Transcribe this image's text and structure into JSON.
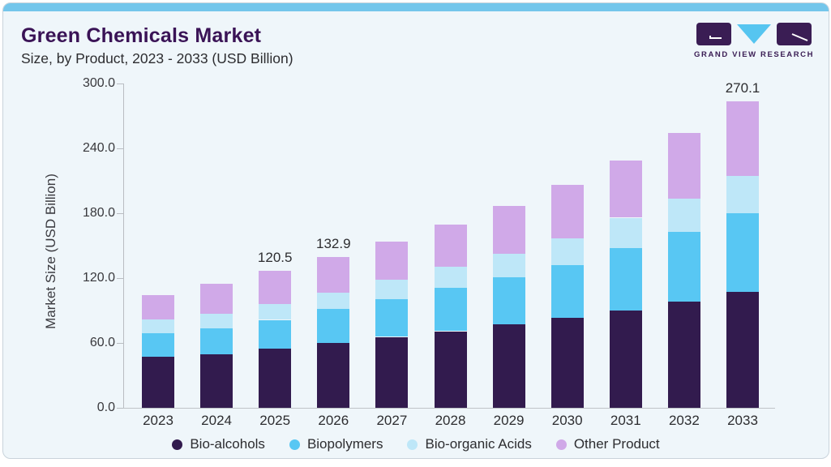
{
  "header": {
    "title": "Green Chemicals Market",
    "subtitle": "Size, by Product, 2023 - 2033 (USD Billion)"
  },
  "logo": {
    "name": "grand-view-research",
    "text": "GRAND VIEW RESEARCH",
    "dark_color": "#3a1d54",
    "blue_color": "#56c5f0"
  },
  "chart_data": {
    "type": "bar",
    "stacked": true,
    "title": "Green Chemicals Market Size, by Product, 2023 - 2033 (USD Billion)",
    "xlabel": "",
    "ylabel": "Market Size (USD Billion)",
    "ylim": [
      0,
      300
    ],
    "ytick_labels": [
      "300.0",
      "240.0",
      "180.0",
      "120.0",
      "60.0",
      "0.0"
    ],
    "grid": false,
    "legend_position": "bottom",
    "categories": [
      "2023",
      "2024",
      "2025",
      "2026",
      "2027",
      "2028",
      "2029",
      "2030",
      "2031",
      "2032",
      "2033"
    ],
    "series": [
      {
        "name": "Bio-alcohols",
        "color": "#321b4e",
        "values": [
          45.0,
          47.5,
          52.0,
          57.0,
          62.5,
          67.5,
          73.5,
          79.5,
          86.0,
          93.5,
          102.0
        ]
      },
      {
        "name": "Biopolymers",
        "color": "#58c7f3",
        "values": [
          20.5,
          22.5,
          25.5,
          30.0,
          33.0,
          38.0,
          41.5,
          46.5,
          54.5,
          61.5,
          69.5
        ]
      },
      {
        "name": "Bio-organic Acids",
        "color": "#bee7f8",
        "values": [
          12.2,
          13.1,
          13.8,
          14.4,
          17.5,
          18.6,
          20.7,
          23.5,
          27.0,
          29.5,
          32.5
        ]
      },
      {
        "name": "Other Product",
        "color": "#d0a9e8",
        "values": [
          21.5,
          26.2,
          29.2,
          31.5,
          33.5,
          37.5,
          42.5,
          47.0,
          50.5,
          57.5,
          66.1
        ]
      }
    ],
    "totals": [
      99.2,
      109.3,
      120.5,
      132.9,
      146.5,
      161.6,
      178.2,
      196.5,
      218.0,
      242.0,
      270.1
    ],
    "total_labels": [
      "",
      "",
      "120.5",
      "132.9",
      "",
      "",
      "",
      "",
      "",
      "",
      "270.1"
    ]
  },
  "colors": {
    "card_background": "#eff6fa",
    "top_strip": "#74c6eb",
    "card_border": "#c9d3db",
    "title_text": "#3a1356",
    "body_text": "#2d2d30",
    "axis_line": "#b9bdc2"
  }
}
